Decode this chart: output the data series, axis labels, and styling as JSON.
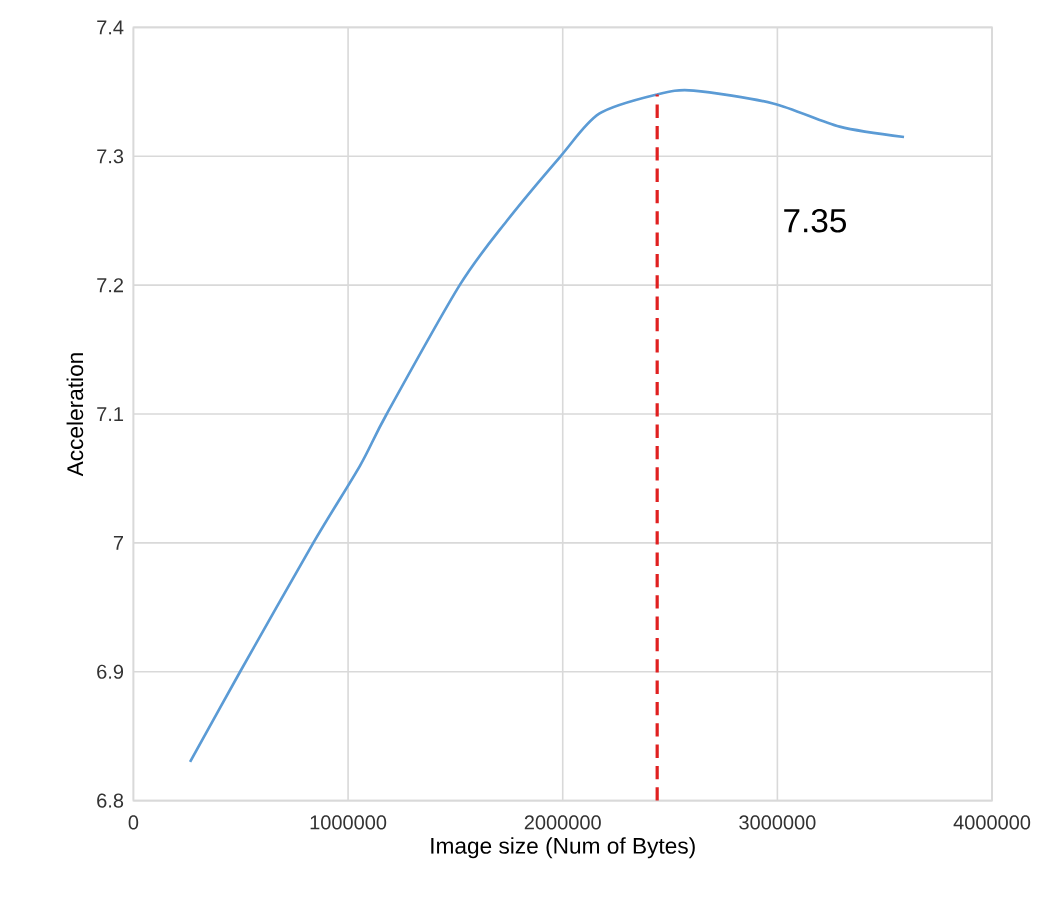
{
  "chart_data": {
    "type": "line",
    "xlabel": "Image size (Num of Bytes)",
    "ylabel": "Acceleration",
    "x": [
      264000,
      497000,
      838000,
      1056000,
      1180000,
      1520000,
      1740000,
      1990000,
      2170000,
      2440000,
      2610000,
      2980000,
      3290000,
      3590000
    ],
    "series": [
      {
        "color": "#5b9bd5",
        "values": [
          6.83,
          6.9,
          7.0,
          7.06,
          7.1,
          7.2,
          7.25,
          7.3,
          7.333,
          7.348,
          7.351,
          7.341,
          7.323,
          7.315
        ]
      }
    ],
    "xlim": [
      0,
      4000000
    ],
    "xticks": [
      0,
      1000000,
      2000000,
      3000000,
      4000000
    ],
    "ylim": [
      6.8,
      7.4
    ],
    "yticks": [
      6.8,
      6.9,
      7,
      7.1,
      7.2,
      7.3,
      7.4
    ],
    "grid": true,
    "marker": "none",
    "line_style": "solid",
    "ref_lines": [
      {
        "axis": "x",
        "value": 2440000,
        "color": "#e02020",
        "line_style": "dashed"
      }
    ],
    "annotations": [
      "7.35"
    ]
  }
}
